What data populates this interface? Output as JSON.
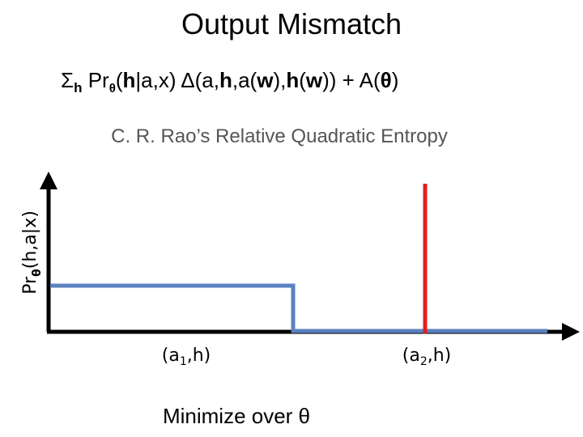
{
  "title": "Output Mismatch",
  "formula": {
    "parts": [
      "Σ",
      "h",
      " Pr",
      "θ",
      "(",
      "h",
      "|a,x)  Δ(a,",
      "h",
      ",a(",
      "w",
      "),",
      "h",
      "(",
      "w",
      ")) + A(",
      "θ",
      ")"
    ]
  },
  "subtitle": "C. R. Rao’s Relative Quadratic Entropy",
  "y_axis_label": {
    "parts": [
      "Pr",
      "θ",
      "(h,a|x)"
    ]
  },
  "x_labels": [
    {
      "parts": [
        "(a",
        "1",
        ",h)"
      ]
    },
    {
      "parts": [
        "(a",
        "2",
        ",h)"
      ]
    }
  ],
  "caption": "Minimize over θ"
}
